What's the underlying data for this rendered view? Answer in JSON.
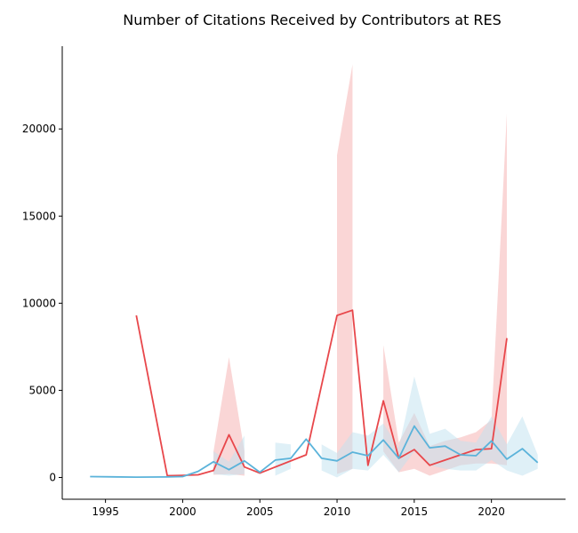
{
  "chart_data": {
    "type": "line",
    "title": "Number of Citations Received by Contributors at RES",
    "xlabel": "",
    "ylabel": "",
    "xlim": [
      1992.2,
      2024.8
    ],
    "ylim": [
      -1250,
      24750
    ],
    "x_ticks": [
      1995,
      2000,
      2005,
      2010,
      2015,
      2020
    ],
    "y_ticks": [
      0,
      5000,
      10000,
      15000,
      20000
    ],
    "grid": false,
    "legend": "none",
    "colors": {
      "red_line": "#e8474b",
      "red_band": "#f4a3a3",
      "blue_line": "#5bb3da",
      "blue_band": "#bfe2f0",
      "axis": "#000000",
      "background": "#ffffff"
    },
    "series": [
      {
        "line_color": "#e8474b",
        "band_color": "#f4a3a3",
        "points": [
          {
            "x": 1997,
            "y": 9300
          },
          {
            "x": 1999,
            "y": 100
          },
          {
            "x": 2000,
            "y": 120
          },
          {
            "x": 2001,
            "y": 150
          },
          {
            "x": 2002,
            "y": 400,
            "lo": 150,
            "hi": 1500
          },
          {
            "x": 2003,
            "y": 2450,
            "lo": 200,
            "hi": 6900
          },
          {
            "x": 2004,
            "y": 600,
            "lo": 100,
            "hi": 1500
          },
          {
            "x": 2005,
            "y": 250
          },
          {
            "x": 2008,
            "y": 1300
          },
          {
            "x": 2010,
            "y": 9300,
            "lo": 200,
            "hi": 18500
          },
          {
            "x": 2011,
            "y": 9600,
            "lo": 500,
            "hi": 23700
          },
          {
            "x": 2012,
            "y": 700
          },
          {
            "x": 2013,
            "y": 4400,
            "lo": 1500,
            "hi": 7600
          },
          {
            "x": 2014,
            "y": 1100,
            "lo": 300,
            "hi": 2000
          },
          {
            "x": 2015,
            "y": 1600,
            "lo": 500,
            "hi": 3700
          },
          {
            "x": 2016,
            "y": 700,
            "lo": 100,
            "hi": 1800
          },
          {
            "x": 2017,
            "y": 1000,
            "lo": 400,
            "hi": 2100
          },
          {
            "x": 2018,
            "y": 1300,
            "lo": 700,
            "hi": 2300
          },
          {
            "x": 2019,
            "y": 1600,
            "lo": 800,
            "hi": 2600
          },
          {
            "x": 2020,
            "y": 1650,
            "lo": 800,
            "hi": 3300
          },
          {
            "x": 2021,
            "y": 8000,
            "lo": 700,
            "hi": 20900
          }
        ]
      },
      {
        "line_color": "#5bb3da",
        "band_color": "#bfe2f0",
        "points": [
          {
            "x": 1994,
            "y": 50
          },
          {
            "x": 1997,
            "y": 20
          },
          {
            "x": 1999,
            "y": 30
          },
          {
            "x": 2000,
            "y": 50
          },
          {
            "x": 2001,
            "y": 350
          },
          {
            "x": 2002,
            "y": 900,
            "lo": 200,
            "hi": 1500
          },
          {
            "x": 2003,
            "y": 450,
            "lo": 100,
            "hi": 900
          },
          {
            "x": 2004,
            "y": 950,
            "lo": 200,
            "hi": 2400
          },
          {
            "x": 2005,
            "y": 300
          },
          {
            "x": 2006,
            "y": 1000,
            "lo": 100,
            "hi": 2000
          },
          {
            "x": 2007,
            "y": 1100,
            "lo": 500,
            "hi": 1900
          },
          {
            "x": 2008,
            "y": 2200
          },
          {
            "x": 2009,
            "y": 1100,
            "lo": 400,
            "hi": 1900
          },
          {
            "x": 2010,
            "y": 950,
            "lo": 0,
            "hi": 1400
          },
          {
            "x": 2011,
            "y": 1450,
            "lo": 500,
            "hi": 2600
          },
          {
            "x": 2012,
            "y": 1250,
            "lo": 400,
            "hi": 2400
          },
          {
            "x": 2013,
            "y": 2150,
            "lo": 1300,
            "hi": 3100
          },
          {
            "x": 2014,
            "y": 1100,
            "lo": 300,
            "hi": 1700
          },
          {
            "x": 2015,
            "y": 2950,
            "lo": 1500,
            "hi": 5800
          },
          {
            "x": 2016,
            "y": 1700,
            "lo": 700,
            "hi": 2500
          },
          {
            "x": 2017,
            "y": 1800,
            "lo": 500,
            "hi": 2800
          },
          {
            "x": 2018,
            "y": 1300,
            "lo": 400,
            "hi": 2100
          },
          {
            "x": 2019,
            "y": 1250,
            "lo": 400,
            "hi": 2000
          },
          {
            "x": 2020,
            "y": 2100,
            "lo": 1000,
            "hi": 3500
          },
          {
            "x": 2021,
            "y": 1050,
            "lo": 400,
            "hi": 1900
          },
          {
            "x": 2022,
            "y": 1650,
            "lo": 100,
            "hi": 3500
          },
          {
            "x": 2023,
            "y": 850,
            "lo": 500,
            "hi": 1300
          }
        ]
      }
    ]
  }
}
